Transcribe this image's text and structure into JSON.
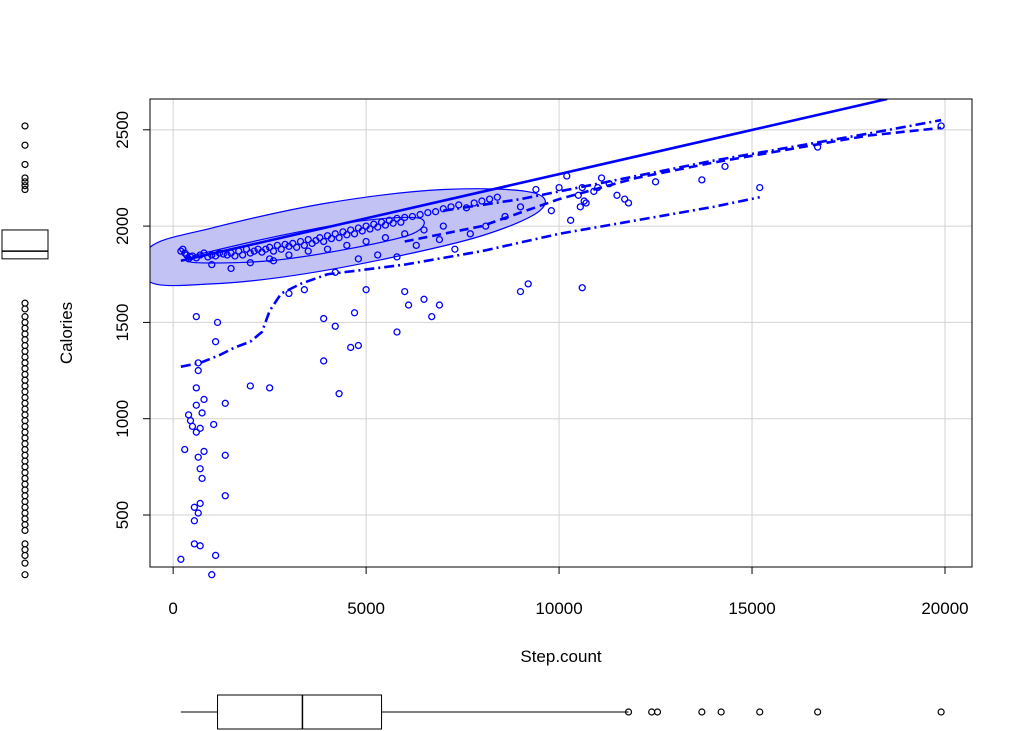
{
  "chart_data": {
    "type": "scatter",
    "title": "",
    "xlabel": "Step.count",
    "ylabel": "Calories",
    "xlim": [
      -600,
      20700
    ],
    "ylim": [
      230,
      2660
    ],
    "grid": true,
    "x_ticks": [
      "0",
      "5000",
      "10000",
      "15000",
      "20000"
    ],
    "y_ticks": [
      "500",
      "1000",
      "1500",
      "2000",
      "2500"
    ],
    "color": "#0000ff",
    "ellipse_fill": "#c2c2f5",
    "points": [
      [
        200,
        1870
      ],
      [
        250,
        1880
      ],
      [
        300,
        1860
      ],
      [
        350,
        1850
      ],
      [
        400,
        1830
      ],
      [
        450,
        1840
      ],
      [
        500,
        1845
      ],
      [
        600,
        1835
      ],
      [
        700,
        1850
      ],
      [
        800,
        1860
      ],
      [
        900,
        1840
      ],
      [
        1000,
        1850
      ],
      [
        1100,
        1845
      ],
      [
        1200,
        1860
      ],
      [
        1300,
        1855
      ],
      [
        1400,
        1850
      ],
      [
        1500,
        1860
      ],
      [
        1600,
        1845
      ],
      [
        1700,
        1870
      ],
      [
        1800,
        1850
      ],
      [
        1900,
        1880
      ],
      [
        2000,
        1860
      ],
      [
        2100,
        1870
      ],
      [
        2200,
        1880
      ],
      [
        2300,
        1865
      ],
      [
        2400,
        1880
      ],
      [
        2500,
        1890
      ],
      [
        2600,
        1870
      ],
      [
        2700,
        1900
      ],
      [
        2800,
        1880
      ],
      [
        2900,
        1905
      ],
      [
        3000,
        1895
      ],
      [
        3100,
        1910
      ],
      [
        3200,
        1890
      ],
      [
        3300,
        1920
      ],
      [
        3400,
        1900
      ],
      [
        3500,
        1930
      ],
      [
        3600,
        1910
      ],
      [
        3700,
        1925
      ],
      [
        3800,
        1940
      ],
      [
        3900,
        1920
      ],
      [
        4000,
        1950
      ],
      [
        4100,
        1935
      ],
      [
        4200,
        1960
      ],
      [
        4300,
        1940
      ],
      [
        4400,
        1970
      ],
      [
        4500,
        1955
      ],
      [
        4600,
        1980
      ],
      [
        4700,
        1960
      ],
      [
        4800,
        1990
      ],
      [
        4900,
        1975
      ],
      [
        5000,
        2000
      ],
      [
        5100,
        1985
      ],
      [
        5200,
        2010
      ],
      [
        5300,
        1995
      ],
      [
        5400,
        2020
      ],
      [
        5500,
        2005
      ],
      [
        5600,
        2030
      ],
      [
        5700,
        2015
      ],
      [
        5800,
        2040
      ],
      [
        5900,
        2020
      ],
      [
        6000,
        2045
      ],
      [
        6200,
        2050
      ],
      [
        6400,
        2060
      ],
      [
        6600,
        2070
      ],
      [
        6800,
        2075
      ],
      [
        7000,
        2090
      ],
      [
        7200,
        2100
      ],
      [
        7400,
        2110
      ],
      [
        7600,
        2095
      ],
      [
        7800,
        2120
      ],
      [
        8000,
        2130
      ],
      [
        8200,
        2140
      ],
      [
        8400,
        2150
      ],
      [
        2600,
        1820
      ],
      [
        3000,
        1850
      ],
      [
        3500,
        1870
      ],
      [
        4000,
        1880
      ],
      [
        4500,
        1900
      ],
      [
        5000,
        1920
      ],
      [
        5500,
        1940
      ],
      [
        6000,
        1960
      ],
      [
        6500,
        1980
      ],
      [
        7000,
        2000
      ],
      [
        1000,
        1800
      ],
      [
        1500,
        1780
      ],
      [
        2000,
        1810
      ],
      [
        2500,
        1830
      ],
      [
        4200,
        1760
      ],
      [
        4800,
        1830
      ],
      [
        5300,
        1850
      ],
      [
        5800,
        1840
      ],
      [
        6300,
        1900
      ],
      [
        6900,
        1930
      ],
      [
        7300,
        1880
      ],
      [
        7700,
        1960
      ],
      [
        8100,
        2000
      ],
      [
        8600,
        2050
      ],
      [
        9000,
        2100
      ],
      [
        9400,
        2190
      ],
      [
        9800,
        2080
      ],
      [
        10000,
        2200
      ],
      [
        10200,
        2260
      ],
      [
        10500,
        2160
      ],
      [
        10600,
        2200
      ],
      [
        10700,
        2120
      ],
      [
        10900,
        2180
      ],
      [
        11100,
        2250
      ],
      [
        11300,
        2220
      ],
      [
        11500,
        2160
      ],
      [
        11700,
        2140
      ],
      [
        11800,
        2120
      ],
      [
        12500,
        2230
      ],
      [
        13700,
        2240
      ],
      [
        14300,
        2310
      ],
      [
        16700,
        2410
      ],
      [
        19900,
        2520
      ],
      [
        10300,
        2030
      ],
      [
        10550,
        2100
      ],
      [
        10650,
        2130
      ],
      [
        11000,
        2200
      ],
      [
        9000,
        1660
      ],
      [
        9200,
        1700
      ],
      [
        10600,
        1680
      ],
      [
        15200,
        2200
      ],
      [
        3900,
        1520
      ],
      [
        4200,
        1480
      ],
      [
        4700,
        1550
      ],
      [
        3900,
        1300
      ],
      [
        4600,
        1370
      ],
      [
        4800,
        1380
      ],
      [
        4300,
        1130
      ],
      [
        5000,
        1670
      ],
      [
        5800,
        1450
      ],
      [
        6100,
        1590
      ],
      [
        6000,
        1660
      ],
      [
        6500,
        1620
      ],
      [
        6700,
        1530
      ],
      [
        6900,
        1590
      ],
      [
        2000,
        1170
      ],
      [
        2500,
        1160
      ],
      [
        3000,
        1650
      ],
      [
        3400,
        1670
      ],
      [
        200,
        270
      ],
      [
        300,
        840
      ],
      [
        400,
        1020
      ],
      [
        450,
        990
      ],
      [
        500,
        960
      ],
      [
        550,
        350
      ],
      [
        550,
        470
      ],
      [
        550,
        540
      ],
      [
        600,
        930
      ],
      [
        600,
        1530
      ],
      [
        600,
        1070
      ],
      [
        650,
        510
      ],
      [
        650,
        800
      ],
      [
        650,
        1250
      ],
      [
        700,
        950
      ],
      [
        700,
        740
      ],
      [
        700,
        560
      ],
      [
        750,
        690
      ],
      [
        750,
        1030
      ],
      [
        700,
        340
      ],
      [
        800,
        1100
      ],
      [
        800,
        830
      ],
      [
        600,
        1160
      ],
      [
        650,
        1290
      ],
      [
        1000,
        190
      ],
      [
        1100,
        290
      ],
      [
        1050,
        970
      ],
      [
        1100,
        1400
      ],
      [
        1150,
        1500
      ],
      [
        1350,
        1080
      ],
      [
        1350,
        810
      ],
      [
        1350,
        600
      ]
    ],
    "lines": [
      {
        "style": "solid",
        "points": [
          [
            200,
            1820
          ],
          [
            18500,
            2660
          ]
        ]
      },
      {
        "style": "dashed",
        "points": [
          [
            6000,
            1920
          ],
          [
            8000,
            2000
          ],
          [
            10000,
            2140
          ],
          [
            12000,
            2250
          ],
          [
            14000,
            2330
          ],
          [
            16000,
            2400
          ],
          [
            18000,
            2470
          ],
          [
            19900,
            2510
          ]
        ]
      },
      {
        "style": "dashdot",
        "points": [
          [
            200,
            1270
          ],
          [
            700,
            1290
          ],
          [
            1200,
            1330
          ],
          [
            1600,
            1370
          ],
          [
            2000,
            1400
          ],
          [
            2300,
            1450
          ],
          [
            2500,
            1560
          ],
          [
            2800,
            1650
          ],
          [
            3300,
            1700
          ],
          [
            4000,
            1750
          ],
          [
            6000,
            1800
          ],
          [
            8000,
            1870
          ],
          [
            10000,
            1960
          ],
          [
            12000,
            2030
          ],
          [
            14000,
            2100
          ],
          [
            15200,
            2150
          ]
        ]
      },
      {
        "style": "dashdot",
        "points": [
          [
            7000,
            2080
          ],
          [
            9000,
            2140
          ],
          [
            10000,
            2180
          ],
          [
            12000,
            2260
          ],
          [
            14000,
            2340
          ],
          [
            16000,
            2410
          ],
          [
            18000,
            2480
          ],
          [
            19900,
            2550
          ]
        ]
      }
    ],
    "ellipses": [
      {
        "points": [
          [
            -600,
            1710
          ],
          [
            1000,
            1700
          ],
          [
            3000,
            1740
          ],
          [
            5500,
            1830
          ],
          [
            8000,
            1950
          ],
          [
            9500,
            2080
          ],
          [
            9300,
            2175
          ],
          [
            7000,
            2190
          ],
          [
            4000,
            2120
          ],
          [
            1000,
            1990
          ],
          [
            -600,
            1890
          ]
        ]
      },
      {
        "points": [
          [
            600,
            1810
          ],
          [
            2500,
            1820
          ],
          [
            4500,
            1880
          ],
          [
            6200,
            1960
          ],
          [
            6400,
            2040
          ],
          [
            5000,
            2030
          ],
          [
            3000,
            1960
          ],
          [
            1000,
            1870
          ],
          [
            500,
            1840
          ]
        ]
      }
    ],
    "x_boxplot": {
      "min": 200,
      "q1": 1150,
      "median": 3350,
      "q3": 5400,
      "max": 11800,
      "outliers": [
        11800,
        12400,
        12550,
        13700,
        14200,
        15200,
        16700,
        19900
      ]
    },
    "y_boxplot": {
      "min": 1830,
      "q1": 1830,
      "median": 1870,
      "q3": 1980,
      "max": 1980,
      "outliers": [
        2520,
        2420,
        2320,
        2250,
        2230,
        2210,
        2190,
        1600,
        1570,
        1530,
        1500,
        1470,
        1440,
        1410,
        1380,
        1350,
        1320,
        1290,
        1260,
        1230,
        1200,
        1170,
        1140,
        1110,
        1080,
        1050,
        1020,
        990,
        960,
        930,
        900,
        870,
        840,
        810,
        780,
        750,
        720,
        690,
        660,
        630,
        600,
        570,
        540,
        510,
        480,
        450,
        420,
        350,
        320,
        290,
        250,
        190
      ]
    }
  }
}
